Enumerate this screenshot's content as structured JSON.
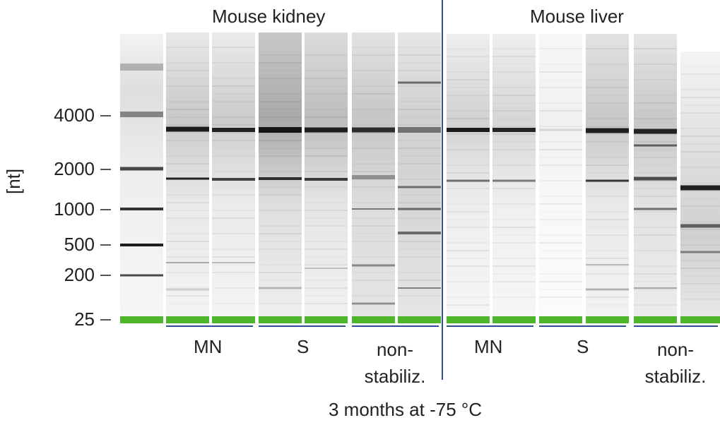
{
  "tissues": [
    {
      "label": "Mouse kidney"
    },
    {
      "label": "Mouse liver"
    }
  ],
  "y_axis": {
    "label": "[nt]",
    "ticks": [
      {
        "label": "4000",
        "nt": 4000
      },
      {
        "label": "2000",
        "nt": 2000
      },
      {
        "label": "1000",
        "nt": 1000
      },
      {
        "label": "500",
        "nt": 500
      },
      {
        "label": "200",
        "nt": 200
      },
      {
        "label": "25",
        "nt": 25
      }
    ]
  },
  "groups": [
    {
      "label": "MN"
    },
    {
      "label": "S"
    },
    {
      "label": "non-\nstabiliz."
    },
    {
      "label": "MN"
    },
    {
      "label": "S"
    },
    {
      "label": "non-\nstabiliz."
    }
  ],
  "caption": "3 months at -75 °C",
  "colors": {
    "marker_band": "#4fb52a",
    "divider": "#2b4f8f",
    "group_bracket": "#2b4f8f",
    "band_dark": "#111111"
  }
}
